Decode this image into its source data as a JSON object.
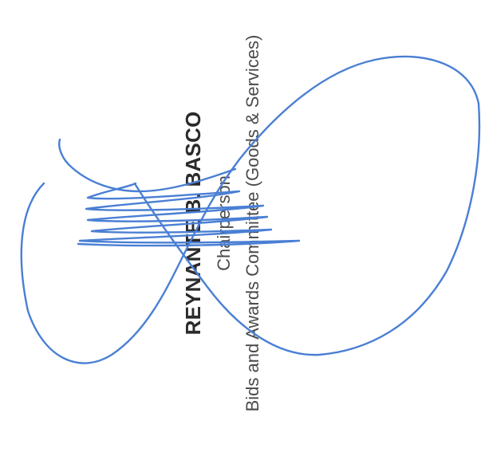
{
  "signatory": {
    "name": "REYNANTE B. BASCO",
    "position": "Chairperson",
    "committee": "Bids and Awards Committee (Goods & Services)"
  },
  "signature": {
    "ink_color": "#4a7fd4"
  }
}
